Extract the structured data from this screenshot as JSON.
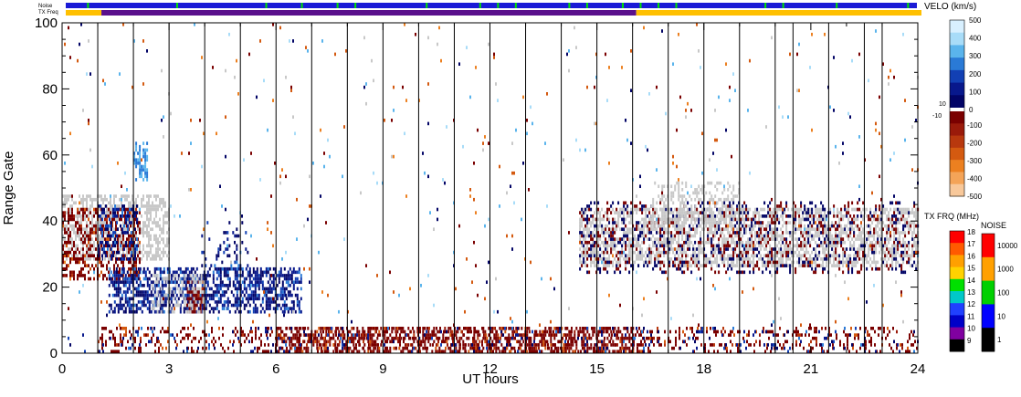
{
  "strip_labels": {
    "noise": "Noise",
    "tx_freq": "TX Freq"
  },
  "chart_data": {
    "type": "heatmap",
    "xlabel": "UT hours",
    "ylabel": "Range Gate",
    "xlim": [
      0,
      24
    ],
    "ylim": [
      0,
      100
    ],
    "x_ticks": [
      "0",
      "3",
      "6",
      "9",
      "12",
      "15",
      "18",
      "21",
      "24"
    ],
    "y_ticks": [
      "0",
      "20",
      "40",
      "60",
      "80",
      "100"
    ],
    "scan_boundaries_ut": [
      1.0,
      2.0,
      3.0,
      4.0,
      5.0,
      6.0,
      7.0,
      8.0,
      9.0,
      10.0,
      11.0,
      12.0,
      13.0,
      14.0,
      15.0,
      16.0,
      17.0,
      18.0,
      19.0,
      20.0,
      20.5,
      21.5,
      22.5,
      23.0
    ],
    "velocity_colorbar": {
      "title": "VELO (km/s)",
      "positive_ticks": [
        "500",
        "400",
        "300",
        "200",
        "100",
        "0"
      ],
      "negative_ticks": [
        "-100",
        "-200",
        "-300",
        "-400",
        "-500"
      ],
      "small_ticks": [
        "10",
        "-10"
      ],
      "colors_positive": [
        "#d8f0ff",
        "#a8dcf8",
        "#5ab4ec",
        "#2a7ad6",
        "#1240b4",
        "#08188c",
        "#020466"
      ],
      "colors_negative": [
        "#7a0000",
        "#9a1a0a",
        "#b8380e",
        "#d45a10",
        "#ec8020",
        "#f4a458",
        "#f8c89a"
      ],
      "ground_scatter_color": "#c8c8c8"
    },
    "tx_freq_colorbar": {
      "title": "TX FRQ (MHz)",
      "ticks": [
        "18",
        "17",
        "16",
        "15",
        "14",
        "13",
        "12",
        "11",
        "10",
        "9"
      ],
      "colors": [
        "#ff0000",
        "#ff5a00",
        "#ffa000",
        "#ffd200",
        "#00e000",
        "#00c8c8",
        "#2040ff",
        "#0000c8",
        "#8000a0",
        "#000000"
      ]
    },
    "noise_colorbar": {
      "title": "NOISE",
      "ticks": [
        "10000",
        "1000",
        "100",
        "10",
        "1"
      ],
      "colors": [
        "#ff0000",
        "#ffa000",
        "#00d000",
        "#0000ff",
        "#000000"
      ]
    },
    "status_strips": {
      "noise": {
        "base_color": "#1a1ad6",
        "marker_color": "#00e000"
      },
      "tx_freq": {
        "segments": [
          {
            "from_ut": 0,
            "to_ut": 1,
            "color": "#ffc000"
          },
          {
            "from_ut": 1,
            "to_ut": 16,
            "color": "#5a108c"
          },
          {
            "from_ut": 16,
            "to_ut": 24,
            "color": "#ffc000"
          }
        ]
      }
    },
    "scatter_regions": [
      {
        "t0": 0.0,
        "t1": 3.0,
        "g0": 28,
        "g1": 48,
        "kind": "ground",
        "density": 0.55
      },
      {
        "t0": 0.0,
        "t1": 2.2,
        "g0": 22,
        "g1": 44,
        "kind": "neg",
        "density": 0.4
      },
      {
        "t0": 1.0,
        "t1": 2.1,
        "g0": 28,
        "g1": 45,
        "kind": "pos",
        "density": 0.35
      },
      {
        "t0": 2.0,
        "t1": 2.4,
        "g0": 52,
        "g1": 64,
        "kind": "poslight",
        "density": 0.6
      },
      {
        "t0": 1.3,
        "t1": 6.7,
        "g0": 12,
        "g1": 26,
        "kind": "pos",
        "density": 0.55
      },
      {
        "t0": 3.5,
        "t1": 4.0,
        "g0": 12,
        "g1": 22,
        "kind": "neg",
        "density": 0.6
      },
      {
        "t0": 2.5,
        "t1": 4.0,
        "g0": 12,
        "g1": 24,
        "kind": "ground",
        "density": 0.3
      },
      {
        "t0": 3.9,
        "t1": 5.2,
        "g0": 26,
        "g1": 40,
        "kind": "pos",
        "density": 0.15
      },
      {
        "t0": 14.5,
        "t1": 24.0,
        "g0": 26,
        "g1": 44,
        "kind": "ground",
        "density": 0.55
      },
      {
        "t0": 14.5,
        "t1": 24.0,
        "g0": 24,
        "g1": 46,
        "kind": "mixed",
        "density": 0.22
      },
      {
        "t0": 16.5,
        "t1": 19.0,
        "g0": 38,
        "g1": 52,
        "kind": "ground",
        "density": 0.3
      },
      {
        "t0": 1.0,
        "t1": 24.0,
        "g0": 0,
        "g1": 8,
        "kind": "neg",
        "density": 0.22
      },
      {
        "t0": 6.0,
        "t1": 16.0,
        "g0": 0,
        "g1": 8,
        "kind": "neg",
        "density": 0.45
      },
      {
        "t0": 0.0,
        "t1": 24.0,
        "g0": 0,
        "g1": 8,
        "kind": "pos",
        "density": 0.06
      },
      {
        "t0": 0.0,
        "t1": 24.0,
        "g0": 8,
        "g1": 100,
        "kind": "sparse",
        "density": 0.012
      }
    ]
  }
}
